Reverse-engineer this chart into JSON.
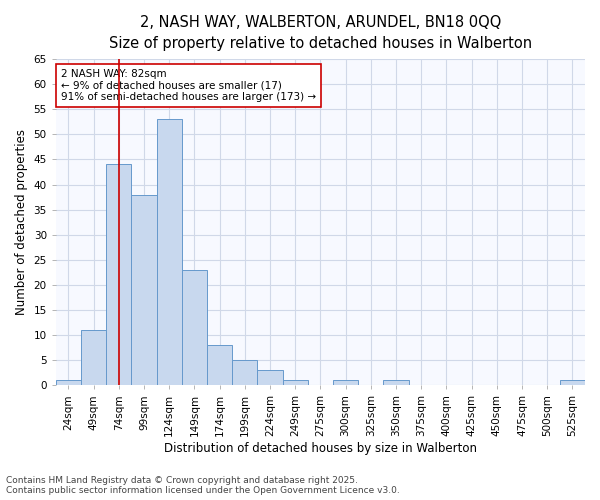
{
  "title_line1": "2, NASH WAY, WALBERTON, ARUNDEL, BN18 0QQ",
  "title_line2": "Size of property relative to detached houses in Walberton",
  "xlabel": "Distribution of detached houses by size in Walberton",
  "ylabel": "Number of detached properties",
  "categories": [
    "24sqm",
    "49sqm",
    "74sqm",
    "99sqm",
    "124sqm",
    "149sqm",
    "174sqm",
    "199sqm",
    "224sqm",
    "249sqm",
    "275sqm",
    "300sqm",
    "325sqm",
    "350sqm",
    "375sqm",
    "400sqm",
    "425sqm",
    "450sqm",
    "475sqm",
    "500sqm",
    "525sqm"
  ],
  "values": [
    1,
    11,
    44,
    38,
    53,
    23,
    8,
    5,
    3,
    1,
    0,
    1,
    0,
    1,
    0,
    0,
    0,
    0,
    0,
    0,
    1
  ],
  "bar_color": "#c8d8ee",
  "bar_edge_color": "#6699cc",
  "vline_x": 2,
  "vline_color": "#cc0000",
  "annotation_text": "2 NASH WAY: 82sqm\n← 9% of detached houses are smaller (17)\n91% of semi-detached houses are larger (173) →",
  "annotation_box_color": "white",
  "annotation_box_edge": "#cc0000",
  "ylim": [
    0,
    65
  ],
  "yticks": [
    0,
    5,
    10,
    15,
    20,
    25,
    30,
    35,
    40,
    45,
    50,
    55,
    60,
    65
  ],
  "bg_color": "#f7f9ff",
  "grid_color": "#d0d8e8",
  "footer_line1": "Contains HM Land Registry data © Crown copyright and database right 2025.",
  "footer_line2": "Contains public sector information licensed under the Open Government Licence v3.0.",
  "title_fontsize": 10.5,
  "subtitle_fontsize": 9.5,
  "axis_label_fontsize": 8.5,
  "tick_fontsize": 7.5,
  "annotation_fontsize": 7.5,
  "footer_fontsize": 6.5
}
